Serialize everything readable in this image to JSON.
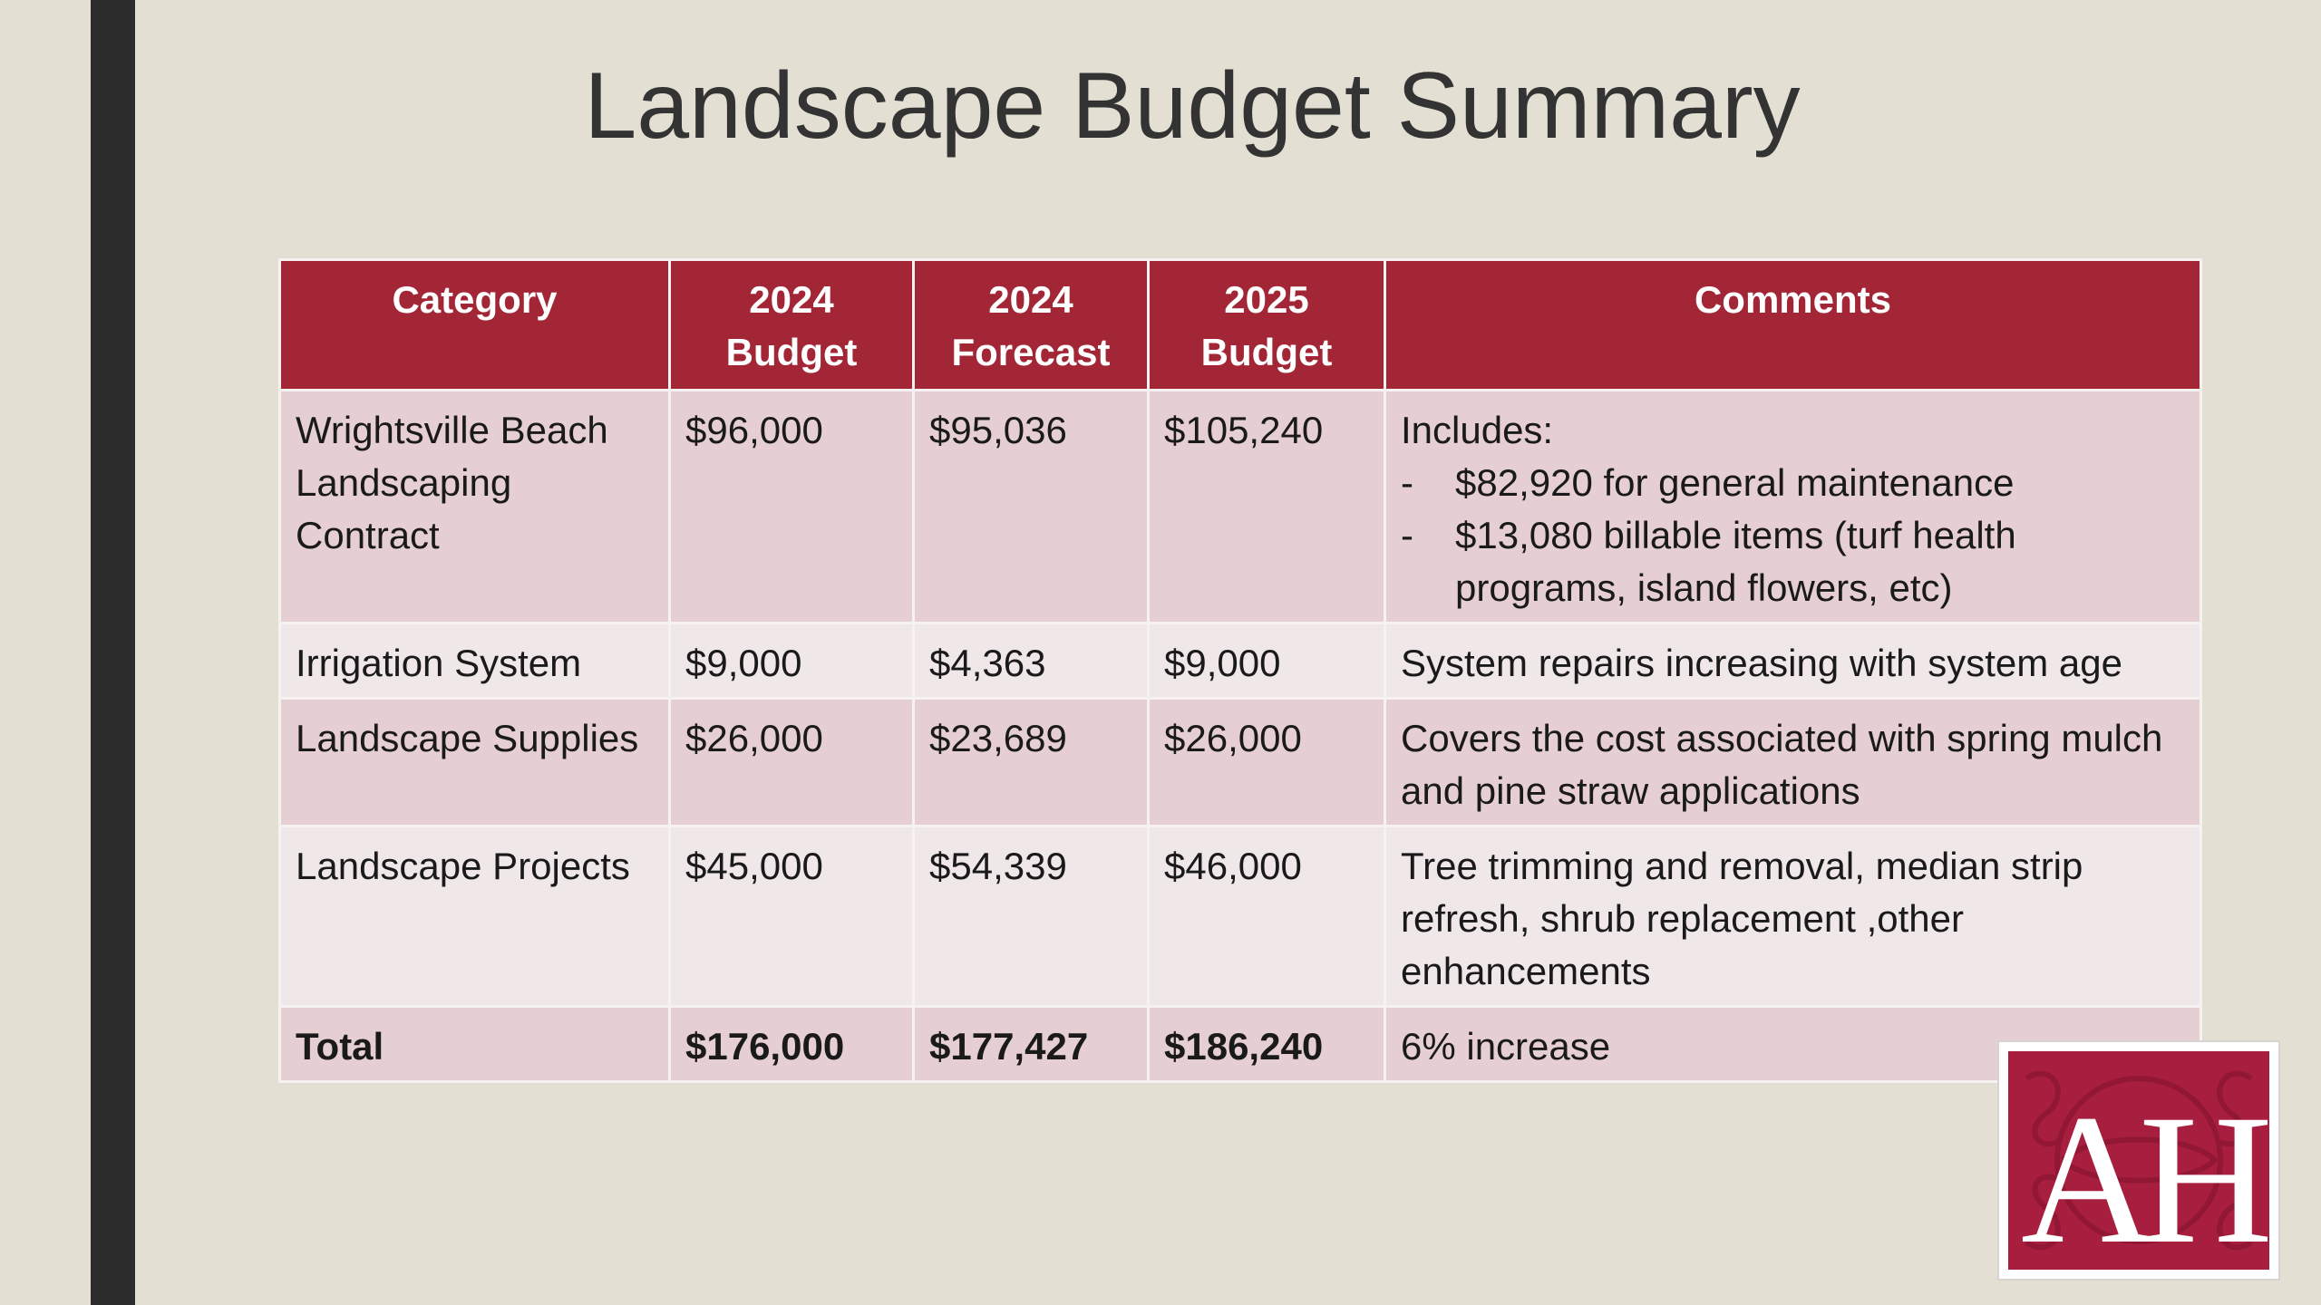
{
  "slide": {
    "title": "Landscape Budget Summary"
  },
  "colors": {
    "header_red": "#a22635",
    "row_pink": "#e6cfd2",
    "row_light": "#efe7e8",
    "background": "#e3dfd3"
  },
  "table": {
    "headers": [
      {
        "line1": "Category",
        "line2": ""
      },
      {
        "line1": "2024",
        "line2": "Budget"
      },
      {
        "line1": "2024",
        "line2": "Forecast"
      },
      {
        "line1": "2025",
        "line2": "Budget"
      },
      {
        "line1": "Comments",
        "line2": ""
      }
    ],
    "rows": [
      {
        "category": "Wrightsville Beach Landscaping Contract",
        "budget_2024": "$96,000",
        "forecast_2024": "$95,036",
        "budget_2025": "$105,240",
        "comment_intro": "Includes:",
        "comment_items": [
          "$82,920 for general maintenance",
          "$13,080 billable items (turf health programs, island flowers, etc)"
        ]
      },
      {
        "category": "Irrigation System",
        "budget_2024": "$9,000",
        "forecast_2024": "$4,363",
        "budget_2025": "$9,000",
        "comment": "System repairs increasing with system age"
      },
      {
        "category": "Landscape Supplies",
        "budget_2024": "$26,000",
        "forecast_2024": "$23,689",
        "budget_2025": "$26,000",
        "comment": "Covers the cost associated with spring mulch and pine straw applications"
      },
      {
        "category": "Landscape Projects",
        "budget_2024": "$45,000",
        "forecast_2024": "$54,339",
        "budget_2025": "$46,000",
        "comment": "Tree trimming and removal, median strip refresh, shrub replacement ,other enhancements"
      }
    ],
    "total": {
      "label": "Total",
      "budget_2024": "$176,000",
      "forecast_2024": "$177,427",
      "budget_2025": "$186,240",
      "comment": "6% increase"
    },
    "dash_glyph": "-"
  },
  "logo": {
    "letters": "AH"
  }
}
